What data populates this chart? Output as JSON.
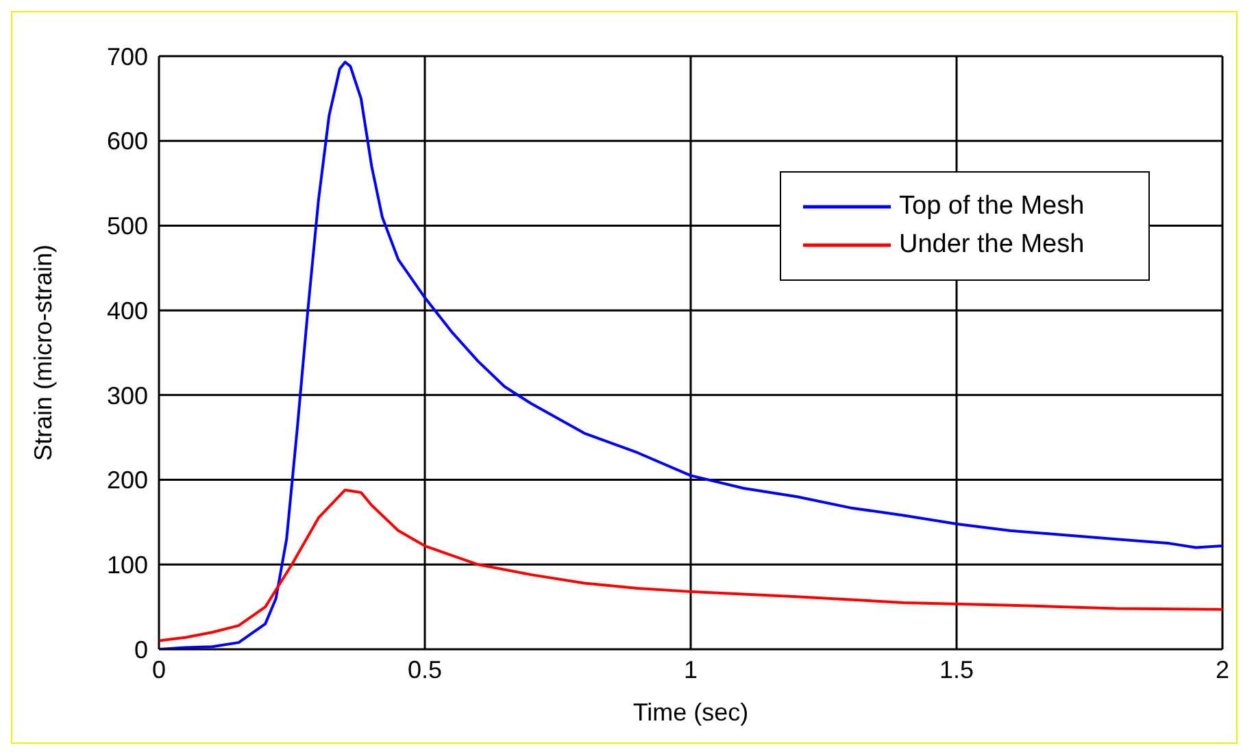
{
  "chart_data": {
    "type": "line",
    "xlabel": "Time (sec)",
    "ylabel": "Strain (micro-strain)",
    "xlim": [
      0,
      2
    ],
    "xticks": [
      0,
      0.5,
      1,
      1.5,
      2
    ],
    "ylim": [
      0,
      700
    ],
    "yticks": [
      0,
      100,
      200,
      300,
      400,
      500,
      600,
      700
    ],
    "grid": true,
    "legend": "top right",
    "marker": "none",
    "line_style": "solid",
    "series": [
      {
        "name": "Top of the Mesh",
        "color": "#0000ff",
        "x": [
          0,
          0.05,
          0.1,
          0.15,
          0.2,
          0.22,
          0.24,
          0.26,
          0.28,
          0.3,
          0.32,
          0.34,
          0.35,
          0.36,
          0.38,
          0.4,
          0.42,
          0.45,
          0.5,
          0.55,
          0.6,
          0.65,
          0.7,
          0.8,
          0.9,
          1.0,
          1.1,
          1.2,
          1.3,
          1.4,
          1.5,
          1.6,
          1.7,
          1.8,
          1.9,
          1.95,
          2.0
        ],
        "values": [
          0,
          2,
          3,
          8,
          30,
          60,
          130,
          260,
          400,
          530,
          630,
          685,
          693,
          688,
          650,
          570,
          510,
          460,
          415,
          375,
          340,
          310,
          290,
          255,
          232,
          205,
          190,
          180,
          167,
          158,
          148,
          140,
          135,
          130,
          125,
          120,
          122
        ]
      },
      {
        "name": "Under the Mesh",
        "color": "#ff0000",
        "x": [
          0,
          0.05,
          0.1,
          0.15,
          0.2,
          0.25,
          0.3,
          0.35,
          0.38,
          0.4,
          0.45,
          0.5,
          0.6,
          0.7,
          0.8,
          0.9,
          1.0,
          1.2,
          1.4,
          1.6,
          1.8,
          2.0
        ],
        "values": [
          10,
          14,
          20,
          28,
          50,
          100,
          155,
          188,
          185,
          170,
          140,
          122,
          100,
          88,
          78,
          72,
          68,
          62,
          55,
          52,
          48,
          47
        ]
      }
    ]
  }
}
